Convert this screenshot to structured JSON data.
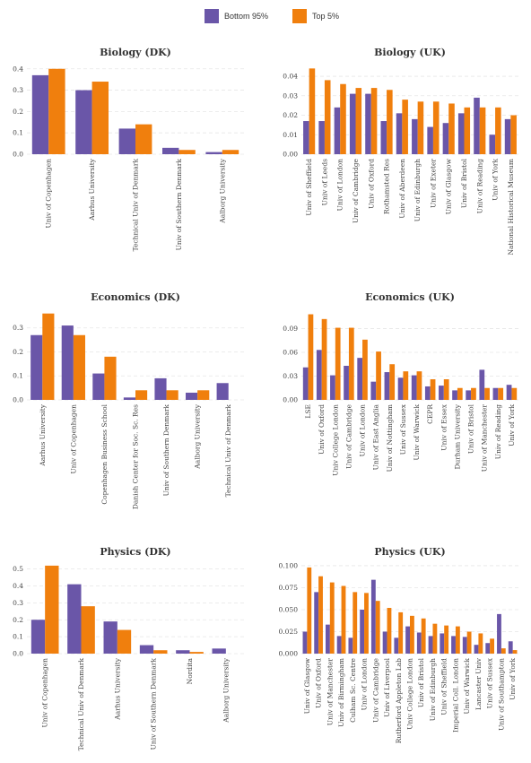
{
  "legend": [
    {
      "label": "Bottom 95%",
      "color": "#6a56a8"
    },
    {
      "label": "Top 5%",
      "color": "#f07f0d"
    }
  ],
  "chart_data": [
    {
      "type": "bar",
      "title": "Biology (DK)",
      "ylim": [
        0,
        0.42
      ],
      "yticks": [
        "0.0",
        "0.1",
        "0.2",
        "0.3",
        "0.4"
      ],
      "categories": [
        "Univ of Copenhagen",
        "Aarhus University",
        "Technical Univ of Denmark",
        "Univ of Southern Denmark",
        "Aalborg University"
      ],
      "series": [
        {
          "name": "Bottom 95%",
          "values": [
            0.37,
            0.3,
            0.12,
            0.03,
            0.01
          ]
        },
        {
          "name": "Top 5%",
          "values": [
            0.4,
            0.34,
            0.14,
            0.02,
            0.02
          ]
        }
      ]
    },
    {
      "type": "bar",
      "title": "Biology (UK)",
      "ylim": [
        0,
        0.046
      ],
      "yticks": [
        "0.00",
        "0.01",
        "0.02",
        "0.03",
        "0.04"
      ],
      "categories": [
        "Univ of Sheffield",
        "Univ of Leeds",
        "Univ of London",
        "Univ of Cambridge",
        "Univ of Oxford",
        "Rothamsted Res",
        "Univ of Aberdeen",
        "Univ of Edinburgh",
        "Univ of Exeter",
        "Univ of Glasgow",
        "Univ of Bristol",
        "Univ of Reading",
        "Univ of York",
        "National Historical Museum"
      ],
      "series": [
        {
          "name": "Bottom 95%",
          "values": [
            0.017,
            0.017,
            0.024,
            0.031,
            0.031,
            0.017,
            0.021,
            0.018,
            0.014,
            0.016,
            0.021,
            0.029,
            0.01,
            0.018
          ]
        },
        {
          "name": "Top 5%",
          "values": [
            0.044,
            0.038,
            0.036,
            0.034,
            0.034,
            0.033,
            0.028,
            0.027,
            0.027,
            0.026,
            0.024,
            0.024,
            0.024,
            0.02
          ]
        }
      ]
    },
    {
      "type": "bar",
      "title": "Economics (DK)",
      "ylim": [
        0,
        0.37
      ],
      "yticks": [
        "0.0",
        "0.1",
        "0.2",
        "0.3"
      ],
      "categories": [
        "Aarhus University",
        "Univ of Copenhagen",
        "Copenhagen Business School",
        "Danish Center for Soc. Sc. Res",
        "Univ of Southern Denmark",
        "Aalborg University",
        "Technical Univ of Denmark"
      ],
      "series": [
        {
          "name": "Bottom 95%",
          "values": [
            0.27,
            0.31,
            0.11,
            0.01,
            0.09,
            0.03,
            0.07
          ]
        },
        {
          "name": "Top 5%",
          "values": [
            0.36,
            0.27,
            0.18,
            0.04,
            0.04,
            0.04,
            0.0
          ]
        }
      ]
    },
    {
      "type": "bar",
      "title": "Economics (UK)",
      "ylim": [
        0,
        0.112
      ],
      "yticks": [
        "0.00",
        "0.03",
        "0.06",
        "0.09"
      ],
      "categories": [
        "LSE",
        "Univ of Oxford",
        "Univ College London",
        "Univ of Cambridge",
        "Univ of London",
        "Univ of East Anglia",
        "Univ of Nottingham",
        "Univ of Sussex",
        "Univ of Warwick",
        "CEPR",
        "Univ of Essex",
        "Durham University",
        "Univ of Bristol",
        "Univ of Manchester",
        "Univ of Reading",
        "Univ of York"
      ],
      "series": [
        {
          "name": "Bottom 95%",
          "values": [
            0.041,
            0.063,
            0.031,
            0.043,
            0.053,
            0.023,
            0.035,
            0.028,
            0.031,
            0.017,
            0.018,
            0.012,
            0.012,
            0.038,
            0.015,
            0.019
          ]
        },
        {
          "name": "Top 5%",
          "values": [
            0.108,
            0.102,
            0.091,
            0.091,
            0.076,
            0.061,
            0.045,
            0.036,
            0.036,
            0.026,
            0.026,
            0.015,
            0.015,
            0.015,
            0.015,
            0.015
          ]
        }
      ]
    },
    {
      "type": "bar",
      "title": "Physics (DK)",
      "ylim": [
        0,
        0.53
      ],
      "yticks": [
        "0.0",
        "0.1",
        "0.2",
        "0.3",
        "0.4",
        "0.5"
      ],
      "categories": [
        "Univ of Copenhagen",
        "Technical Univ of Denmark",
        "Aarhus University",
        "Univ of Southern Denmark",
        "Nordita",
        "Aalborg University"
      ],
      "series": [
        {
          "name": "Bottom 95%",
          "values": [
            0.2,
            0.41,
            0.19,
            0.05,
            0.02,
            0.03
          ]
        },
        {
          "name": "Top 5%",
          "values": [
            0.52,
            0.28,
            0.14,
            0.02,
            0.01,
            0.0
          ]
        }
      ]
    },
    {
      "type": "bar",
      "title": "Physics (UK)",
      "ylim": [
        0,
        0.102
      ],
      "yticks": [
        "0.000",
        "0.025",
        "0.050",
        "0.075",
        "0.100"
      ],
      "categories": [
        "Univ of Glasgow",
        "Univ of Oxford",
        "Univ of Manchester",
        "Univ of Birmingham",
        "Culham Sc. Centre",
        "Univ of London",
        "Univ of Cambridge",
        "Univ of Liverpool",
        "Rutherford Appleton Lab",
        "Univ College London",
        "Univ of Bristol",
        "Univ of Edinburgh",
        "Univ of Sheffield",
        "Imperial Coll. London",
        "Univ of Warwick",
        "Lancaster Univ",
        "Univ of Sussex",
        "Univ of Southampton",
        "Univ of York"
      ],
      "series": [
        {
          "name": "Bottom 95%",
          "values": [
            0.025,
            0.07,
            0.033,
            0.02,
            0.018,
            0.05,
            0.084,
            0.025,
            0.018,
            0.031,
            0.024,
            0.02,
            0.023,
            0.02,
            0.019,
            0.01,
            0.012,
            0.045,
            0.014
          ]
        },
        {
          "name": "Top 5%",
          "values": [
            0.098,
            0.088,
            0.081,
            0.077,
            0.07,
            0.069,
            0.06,
            0.052,
            0.047,
            0.043,
            0.04,
            0.034,
            0.032,
            0.031,
            0.025,
            0.023,
            0.017,
            0.006,
            0.004
          ]
        }
      ]
    }
  ]
}
